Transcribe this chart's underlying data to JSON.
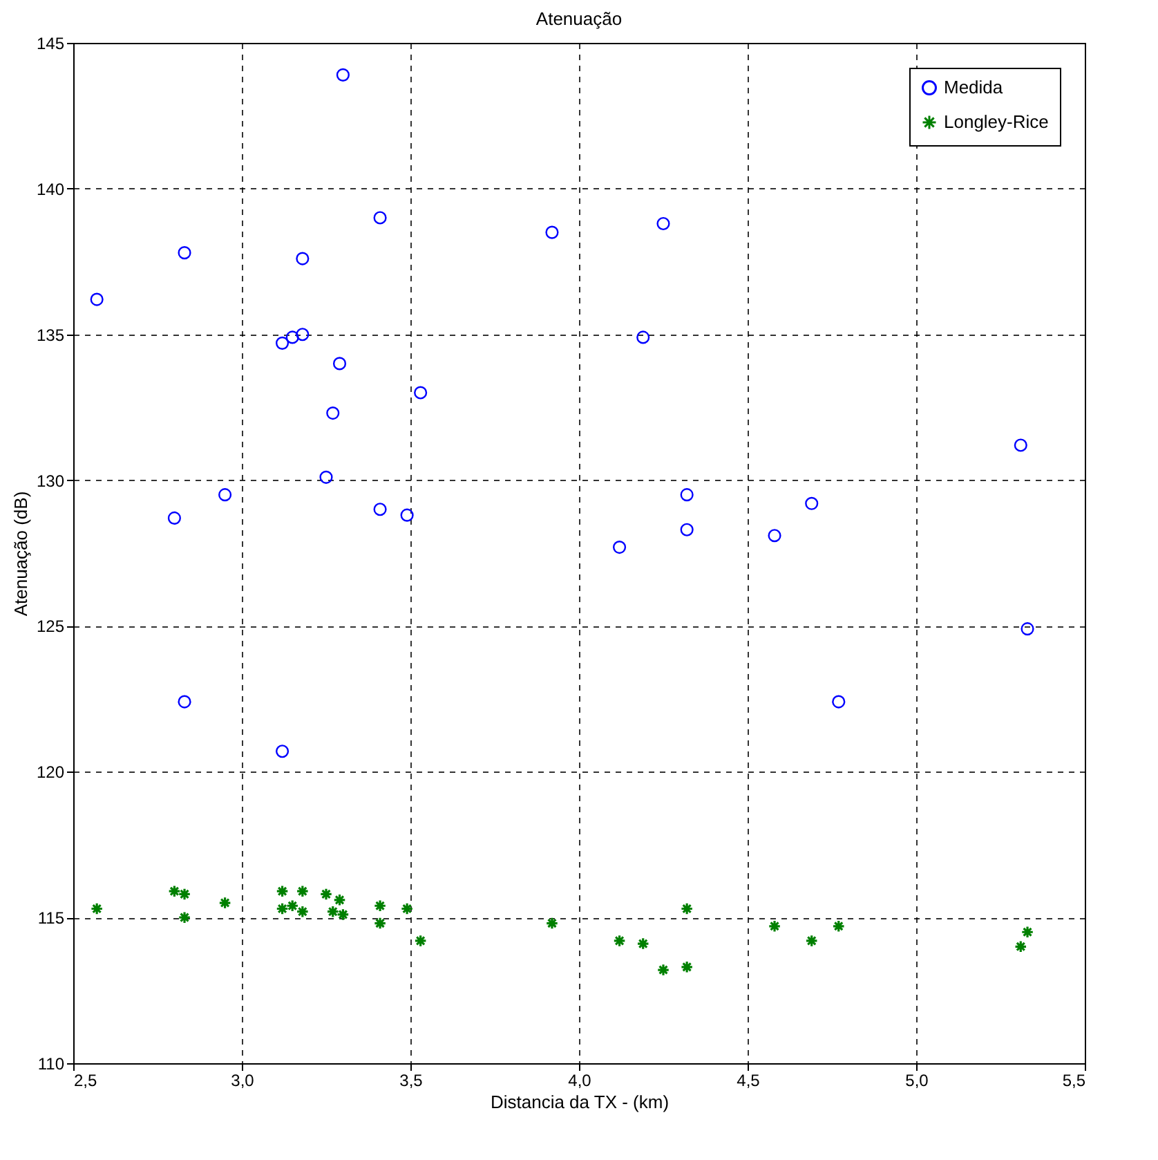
{
  "chart_data": {
    "type": "scatter",
    "title": "Atenuação",
    "xlabel": "Distancia da TX - (km)",
    "ylabel": "Atenuação (dB)",
    "x": [
      2.57,
      2.8,
      2.83,
      2.83,
      2.95,
      3.12,
      3.12,
      3.15,
      3.18,
      3.18,
      3.25,
      3.27,
      3.29,
      3.3,
      3.41,
      3.41,
      3.49,
      3.53,
      3.92,
      4.12,
      4.19,
      4.25,
      4.32,
      4.32,
      4.58,
      4.69,
      4.77,
      5.31,
      5.33
    ],
    "series": [
      {
        "name": "Medida",
        "color": "#0000ff",
        "marker": "circle",
        "values": [
          136.2,
          128.7,
          137.8,
          122.4,
          129.5,
          120.7,
          134.7,
          134.9,
          135.0,
          137.6,
          130.1,
          132.3,
          134.0,
          143.9,
          129.0,
          139.0,
          128.8,
          133.0,
          138.5,
          127.7,
          134.9,
          138.8,
          129.5,
          128.3,
          128.1,
          129.2,
          122.4,
          131.2,
          124.9
        ]
      },
      {
        "name": "Longley-Rice",
        "color": "#008000",
        "marker": "cross",
        "values": [
          115.3,
          115.9,
          115.8,
          115.0,
          115.5,
          115.9,
          115.3,
          115.4,
          115.2,
          115.9,
          115.8,
          115.2,
          115.6,
          115.1,
          114.8,
          115.4,
          115.3,
          114.2,
          114.8,
          114.2,
          114.1,
          113.2,
          115.3,
          113.3,
          114.7,
          114.2,
          114.7,
          114.0,
          114.5
        ]
      }
    ],
    "xlim": [
      2.5,
      5.5
    ],
    "xticks": [
      {
        "value": 2.5,
        "label": "2,5"
      },
      {
        "value": 3.0,
        "label": "3,0"
      },
      {
        "value": 3.5,
        "label": "3,5"
      },
      {
        "value": 4.0,
        "label": "4,0"
      },
      {
        "value": 4.5,
        "label": "4,5"
      },
      {
        "value": 5.0,
        "label": "5,0"
      },
      {
        "value": 5.5,
        "label": "5,5"
      }
    ],
    "ylim": [
      110,
      145
    ],
    "yticks": [
      110,
      115,
      120,
      125,
      130,
      135,
      140,
      145
    ],
    "grid": true,
    "legend": "top right"
  }
}
